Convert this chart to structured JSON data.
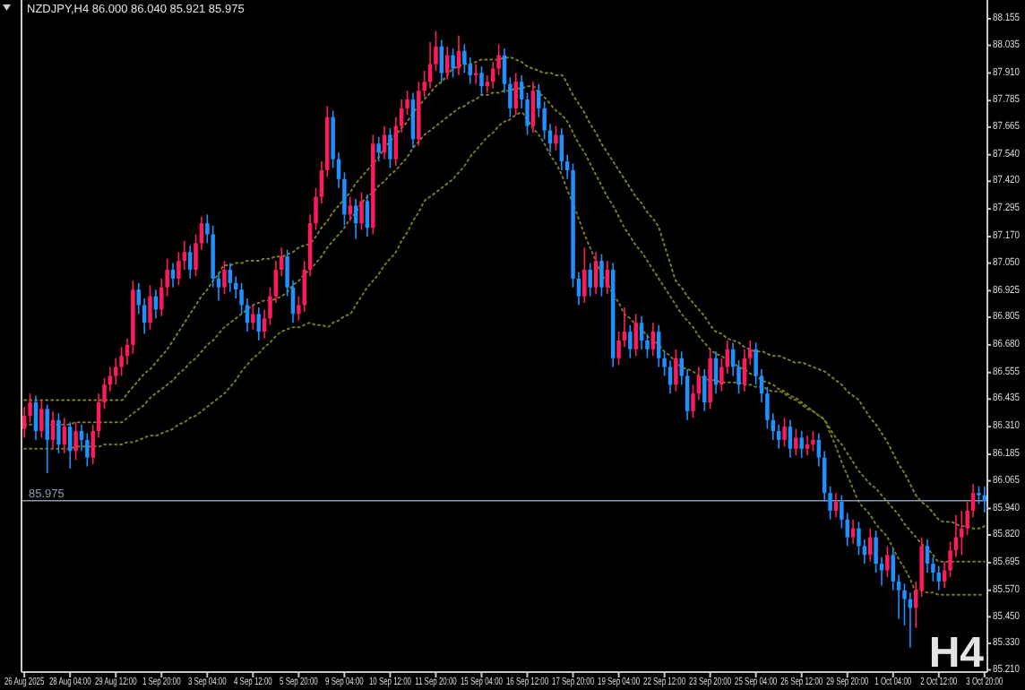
{
  "chart_data": {
    "type": "candlestick",
    "title": "NZDJPY,H4 86.000 86.040 85.921 85.975",
    "annotations": [
      "H4"
    ],
    "categories": [
      "26 Aug 2025",
      null,
      null,
      null,
      null,
      null,
      null,
      null,
      "28 Aug 04:00",
      null,
      null,
      null,
      null,
      null,
      null,
      null,
      "29 Aug 12:00",
      null,
      null,
      null,
      null,
      null,
      null,
      null,
      "1 Sep 20:00",
      null,
      null,
      null,
      null,
      null,
      null,
      null,
      "3 Sep 04:00",
      null,
      null,
      null,
      null,
      null,
      null,
      null,
      "4 Sep 12:00",
      null,
      null,
      null,
      null,
      null,
      null,
      null,
      "5 Sep 20:00",
      null,
      null,
      null,
      null,
      null,
      null,
      null,
      "9 Sep 04:00",
      null,
      null,
      null,
      null,
      null,
      null,
      null,
      "10 Sep 12:00",
      null,
      null,
      null,
      null,
      null,
      null,
      null,
      "11 Sep 20:00",
      null,
      null,
      null,
      null,
      null,
      null,
      null,
      "15 Sep 04:00",
      null,
      null,
      null,
      null,
      null,
      null,
      null,
      "16 Sep 12:00",
      null,
      null,
      null,
      null,
      null,
      null,
      null,
      "17 Sep 20:00",
      null,
      null,
      null,
      null,
      null,
      null,
      null,
      "19 Sep 04:00",
      null,
      null,
      null,
      null,
      null,
      null,
      null,
      "22 Sep 12:00",
      null,
      null,
      null,
      null,
      null,
      null,
      null,
      "23 Sep 20:00",
      null,
      null,
      null,
      null,
      null,
      null,
      null,
      "25 Sep 04:00",
      null,
      null,
      null,
      null,
      null,
      null,
      null,
      "26 Sep 12:00",
      null,
      null,
      null,
      null,
      null,
      null,
      null,
      "29 Sep 20:00",
      null,
      null,
      null,
      null,
      null,
      null,
      null,
      "1 Oct 04:00",
      null,
      null,
      null,
      null,
      null,
      null,
      null,
      "2 Oct 12:00",
      null,
      null,
      null,
      null,
      null,
      null,
      null,
      "3 Oct 20:00"
    ],
    "ylim": [
      85.2,
      88.24
    ],
    "yticks": [
      88.155,
      88.035,
      {
        "value": 87.91,
        "label": "87.910"
      },
      87.785,
      87.665,
      {
        "value": 87.54,
        "label": "87.540"
      },
      {
        "value": 87.42,
        "label": "87.420"
      },
      87.295,
      {
        "value": 87.17,
        "label": "87.170"
      },
      {
        "value": 87.05,
        "label": "87.050"
      },
      86.925,
      86.805,
      {
        "value": 86.68,
        "label": "86.680"
      },
      86.555,
      86.435,
      {
        "value": 86.31,
        "label": "86.310"
      },
      86.185,
      86.065,
      {
        "value": 85.94,
        "label": "85.940"
      },
      {
        "value": 85.82,
        "label": "85.820"
      },
      85.695,
      {
        "value": 85.57,
        "label": "85.570"
      },
      {
        "value": 85.45,
        "label": "85.450"
      },
      {
        "value": 85.33,
        "label": "85.330"
      },
      {
        "value": 85.21,
        "label": "85.210"
      }
    ],
    "ref_lines": [
      {
        "axis": "y",
        "value": 85.975,
        "label": "85.975",
        "color": "#8c98ad"
      }
    ],
    "ohlc": [
      [
        86.3,
        86.4,
        86.26,
        86.36
      ],
      [
        86.36,
        86.46,
        86.33,
        86.42
      ],
      [
        86.42,
        86.45,
        86.25,
        86.29
      ],
      [
        86.29,
        86.43,
        86.26,
        86.39
      ],
      [
        86.39,
        86.41,
        86.1,
        86.25
      ],
      [
        86.25,
        86.38,
        86.21,
        86.34
      ],
      [
        86.34,
        86.37,
        86.19,
        86.23
      ],
      [
        86.23,
        86.35,
        86.19,
        86.31
      ],
      [
        86.31,
        86.33,
        86.12,
        86.2
      ],
      [
        86.2,
        86.33,
        86.16,
        86.29
      ],
      [
        86.29,
        86.32,
        86.2,
        86.25
      ],
      [
        86.25,
        86.28,
        86.13,
        86.17
      ],
      [
        86.17,
        86.32,
        86.14,
        86.29
      ],
      [
        86.29,
        86.46,
        86.26,
        86.42
      ],
      [
        86.42,
        86.53,
        86.39,
        86.5
      ],
      [
        86.5,
        86.58,
        86.47,
        86.54
      ],
      [
        86.54,
        86.62,
        86.5,
        86.58
      ],
      [
        86.58,
        86.67,
        86.54,
        86.63
      ],
      [
        86.63,
        86.71,
        86.59,
        86.68
      ],
      [
        86.68,
        86.97,
        86.64,
        86.93
      ],
      [
        86.93,
        86.96,
        86.82,
        86.86
      ],
      [
        86.86,
        86.89,
        86.73,
        86.78
      ],
      [
        86.78,
        86.95,
        86.75,
        86.9
      ],
      [
        86.9,
        86.93,
        86.8,
        86.84
      ],
      [
        86.84,
        86.98,
        86.81,
        86.94
      ],
      [
        86.94,
        87.07,
        86.9,
        87.02
      ],
      [
        87.02,
        87.05,
        86.94,
        86.98
      ],
      [
        86.98,
        87.1,
        86.95,
        87.06
      ],
      [
        87.06,
        87.15,
        87.02,
        87.1
      ],
      [
        87.1,
        87.13,
        86.98,
        87.02
      ],
      [
        87.02,
        87.18,
        86.99,
        87.14
      ],
      [
        87.14,
        87.26,
        87.11,
        87.23
      ],
      [
        87.23,
        87.27,
        87.14,
        87.18
      ],
      [
        87.18,
        87.22,
        86.94,
        86.98
      ],
      [
        86.98,
        87.01,
        86.88,
        86.94
      ],
      [
        86.94,
        87.06,
        86.91,
        87.02
      ],
      [
        87.02,
        87.05,
        86.92,
        86.96
      ],
      [
        86.96,
        86.99,
        86.89,
        86.93
      ],
      [
        86.93,
        86.96,
        86.82,
        86.86
      ],
      [
        86.86,
        86.89,
        86.74,
        86.78
      ],
      [
        86.78,
        86.86,
        86.75,
        86.82
      ],
      [
        86.82,
        86.85,
        86.7,
        86.74
      ],
      [
        86.74,
        86.84,
        86.71,
        86.8
      ],
      [
        86.8,
        86.94,
        86.77,
        86.9
      ],
      [
        86.9,
        87.06,
        86.87,
        87.02
      ],
      [
        87.02,
        87.12,
        86.99,
        87.08
      ],
      [
        87.08,
        87.11,
        86.9,
        86.94
      ],
      [
        86.94,
        86.97,
        86.78,
        86.82
      ],
      [
        86.82,
        86.9,
        86.79,
        86.86
      ],
      [
        86.86,
        87.06,
        86.83,
        87.02
      ],
      [
        87.02,
        87.27,
        86.99,
        87.23
      ],
      [
        87.23,
        87.39,
        87.2,
        87.35
      ],
      [
        87.35,
        87.51,
        87.32,
        87.47
      ],
      [
        87.47,
        87.76,
        87.44,
        87.71
      ],
      [
        87.71,
        87.74,
        87.48,
        87.52
      ],
      [
        87.52,
        87.55,
        87.39,
        87.43
      ],
      [
        87.43,
        87.46,
        87.22,
        87.27
      ],
      [
        87.27,
        87.35,
        87.24,
        87.31
      ],
      [
        87.31,
        87.34,
        87.16,
        87.23
      ],
      [
        87.23,
        87.37,
        87.2,
        87.33
      ],
      [
        87.33,
        87.36,
        87.17,
        87.21
      ],
      [
        87.21,
        87.63,
        87.18,
        87.59
      ],
      [
        87.59,
        87.62,
        87.51,
        87.55
      ],
      [
        87.55,
        87.67,
        87.52,
        87.63
      ],
      [
        87.63,
        87.66,
        87.48,
        87.52
      ],
      [
        87.52,
        87.71,
        87.49,
        87.67
      ],
      [
        87.67,
        87.79,
        87.64,
        87.75
      ],
      [
        87.75,
        87.83,
        87.72,
        87.79
      ],
      [
        87.79,
        87.82,
        87.57,
        87.61
      ],
      [
        87.61,
        87.87,
        87.58,
        87.83
      ],
      [
        87.83,
        87.92,
        87.8,
        87.87
      ],
      [
        87.87,
        88.05,
        87.84,
        87.95
      ],
      [
        87.95,
        88.1,
        87.92,
        88.03
      ],
      [
        88.03,
        88.06,
        87.87,
        87.91
      ],
      [
        87.91,
        88.03,
        87.88,
        87.99
      ],
      [
        87.99,
        88.02,
        87.89,
        87.93
      ],
      [
        87.93,
        88.08,
        87.9,
        88.01
      ],
      [
        88.01,
        88.04,
        87.91,
        87.95
      ],
      [
        87.95,
        87.98,
        87.86,
        87.9
      ],
      [
        87.9,
        87.95,
        87.86,
        87.91
      ],
      [
        87.91,
        87.94,
        87.81,
        87.85
      ],
      [
        87.85,
        87.9,
        87.82,
        87.87
      ],
      [
        87.87,
        87.96,
        87.84,
        87.93
      ],
      [
        87.93,
        88.04,
        87.9,
        87.99
      ],
      [
        87.99,
        88.02,
        87.82,
        87.86
      ],
      [
        87.86,
        87.89,
        87.71,
        87.75
      ],
      [
        87.75,
        87.91,
        87.72,
        87.87
      ],
      [
        87.87,
        87.9,
        87.75,
        87.79
      ],
      [
        87.79,
        87.82,
        87.63,
        87.67
      ],
      [
        87.67,
        87.87,
        87.64,
        87.83
      ],
      [
        87.83,
        87.86,
        87.71,
        87.75
      ],
      [
        87.75,
        87.78,
        87.61,
        87.65
      ],
      [
        87.65,
        87.68,
        87.55,
        87.59
      ],
      [
        87.59,
        87.67,
        87.56,
        87.63
      ],
      [
        87.63,
        87.66,
        87.47,
        87.51
      ],
      [
        87.51,
        87.54,
        87.43,
        87.47
      ],
      [
        87.47,
        87.5,
        86.94,
        86.98
      ],
      [
        86.98,
        87.01,
        86.86,
        86.9
      ],
      [
        86.9,
        87.12,
        86.87,
        87.02
      ],
      [
        87.02,
        87.05,
        86.9,
        86.94
      ],
      [
        86.94,
        87.1,
        86.91,
        87.06
      ],
      [
        87.06,
        87.09,
        86.9,
        86.94
      ],
      [
        86.94,
        87.06,
        86.91,
        87.02
      ],
      [
        87.02,
        87.05,
        86.58,
        86.62
      ],
      [
        86.62,
        86.74,
        86.59,
        86.7
      ],
      [
        86.7,
        86.85,
        86.67,
        86.74
      ],
      [
        86.74,
        86.77,
        86.62,
        86.66
      ],
      [
        86.66,
        86.82,
        86.63,
        86.78
      ],
      [
        86.78,
        86.81,
        86.66,
        86.7
      ],
      [
        86.7,
        86.73,
        86.62,
        86.66
      ],
      [
        86.66,
        86.78,
        86.63,
        86.74
      ],
      [
        86.74,
        86.77,
        86.58,
        86.62
      ],
      [
        86.62,
        86.65,
        86.54,
        86.58
      ],
      [
        86.58,
        86.61,
        86.46,
        86.5
      ],
      [
        86.5,
        86.66,
        86.47,
        86.62
      ],
      [
        86.62,
        86.65,
        86.5,
        86.54
      ],
      [
        86.54,
        86.57,
        86.34,
        86.38
      ],
      [
        86.38,
        86.5,
        86.35,
        86.46
      ],
      [
        86.46,
        86.58,
        86.43,
        86.54
      ],
      [
        86.54,
        86.57,
        86.38,
        86.42
      ],
      [
        86.42,
        86.66,
        86.39,
        86.62
      ],
      [
        86.62,
        86.65,
        86.46,
        86.5
      ],
      [
        86.5,
        86.62,
        86.47,
        86.58
      ],
      [
        86.58,
        86.7,
        86.55,
        86.66
      ],
      [
        86.66,
        86.69,
        86.54,
        86.58
      ],
      [
        86.58,
        86.61,
        86.46,
        86.5
      ],
      [
        86.5,
        86.66,
        86.47,
        86.62
      ],
      [
        86.62,
        86.7,
        86.59,
        86.66
      ],
      [
        86.66,
        86.69,
        86.5,
        86.54
      ],
      [
        86.54,
        86.57,
        86.42,
        86.46
      ],
      [
        86.46,
        86.49,
        86.3,
        86.34
      ],
      [
        86.34,
        86.37,
        86.25,
        86.29
      ],
      [
        86.29,
        86.32,
        86.21,
        86.25
      ],
      [
        86.25,
        86.35,
        86.22,
        86.31
      ],
      [
        86.31,
        86.34,
        86.17,
        86.21
      ],
      [
        86.21,
        86.3,
        86.18,
        86.26
      ],
      [
        86.26,
        86.29,
        86.17,
        86.21
      ],
      [
        86.21,
        86.27,
        86.18,
        86.23
      ],
      [
        86.23,
        86.29,
        86.2,
        86.25
      ],
      [
        86.25,
        86.28,
        86.13,
        86.17
      ],
      [
        86.17,
        86.2,
        85.97,
        86.01
      ],
      [
        86.01,
        86.04,
        85.89,
        85.93
      ],
      [
        85.93,
        86.01,
        85.9,
        85.97
      ],
      [
        85.97,
        86.0,
        85.85,
        85.89
      ],
      [
        85.89,
        85.92,
        85.77,
        85.81
      ],
      [
        85.81,
        85.89,
        85.78,
        85.85
      ],
      [
        85.85,
        85.88,
        85.73,
        85.77
      ],
      [
        85.77,
        85.8,
        85.69,
        85.73
      ],
      [
        85.73,
        85.85,
        85.7,
        85.81
      ],
      [
        85.81,
        85.84,
        85.65,
        85.69
      ],
      [
        85.69,
        85.72,
        85.59,
        85.66
      ],
      [
        85.66,
        85.77,
        85.63,
        85.73
      ],
      [
        85.73,
        85.76,
        85.57,
        85.61
      ],
      [
        85.61,
        85.64,
        85.44,
        85.57
      ],
      [
        85.57,
        85.6,
        85.41,
        85.53
      ],
      [
        85.53,
        85.56,
        85.31,
        85.49
      ],
      [
        85.49,
        85.61,
        85.4,
        85.57
      ],
      [
        85.57,
        85.81,
        85.54,
        85.77
      ],
      [
        85.77,
        85.8,
        85.65,
        85.69
      ],
      [
        85.69,
        85.72,
        85.61,
        85.65
      ],
      [
        85.65,
        85.68,
        85.57,
        85.61
      ],
      [
        85.61,
        85.7,
        85.58,
        85.66
      ],
      [
        85.66,
        85.79,
        85.63,
        85.75
      ],
      [
        85.75,
        85.91,
        85.72,
        85.81
      ],
      [
        85.81,
        85.93,
        85.73,
        85.85
      ],
      [
        85.85,
        85.97,
        85.82,
        85.93
      ],
      [
        85.93,
        86.05,
        85.9,
        86.01
      ],
      [
        86.01,
        86.04,
        85.96,
        86.0
      ],
      [
        86.0,
        86.04,
        85.921,
        85.975
      ]
    ],
    "colors": [
      "#ff1a5e",
      "#ff1a5e",
      "#1e90ff",
      "#ff1a5e",
      "#1e90ff",
      "#ff1a5e",
      "#1e90ff",
      "#ff1a5e",
      "#1e90ff",
      "#ff1a5e",
      "#1e90ff",
      "#1e90ff",
      "#ff1a5e",
      "#ff1a5e",
      "#ff1a5e",
      "#ff1a5e",
      "#ff1a5e",
      "#ff1a5e",
      "#ff1a5e",
      "#ff1a5e",
      "#1e90ff",
      "#1e90ff",
      "#ff1a5e",
      "#1e90ff",
      "#ff1a5e",
      "#ff1a5e",
      "#1e90ff",
      "#ff1a5e",
      "#ff1a5e",
      "#1e90ff",
      "#ff1a5e",
      "#ff1a5e",
      "#1e90ff",
      "#1e90ff",
      "#1e90ff",
      "#ff1a5e",
      "#1e90ff",
      "#1e90ff",
      "#1e90ff",
      "#1e90ff",
      "#ff1a5e",
      "#1e90ff",
      "#ff1a5e",
      "#ff1a5e",
      "#ff1a5e",
      "#ff1a5e",
      "#1e90ff",
      "#1e90ff",
      "#ff1a5e",
      "#ff1a5e",
      "#ff1a5e",
      "#ff1a5e",
      "#ff1a5e",
      "#ff1a5e",
      "#1e90ff",
      "#1e90ff",
      "#1e90ff",
      "#ff1a5e",
      "#1e90ff",
      "#ff1a5e",
      "#1e90ff",
      "#ff1a5e",
      "#1e90ff",
      "#ff1a5e",
      "#1e90ff",
      "#ff1a5e",
      "#ff1a5e",
      "#ff1a5e",
      "#1e90ff",
      "#ff1a5e",
      "#ff1a5e",
      "#ff1a5e",
      "#ff1a5e",
      "#1e90ff",
      "#ff1a5e",
      "#1e90ff",
      "#ff1a5e",
      "#1e90ff",
      "#1e90ff",
      "#ff1a5e",
      "#1e90ff",
      "#ff1a5e",
      "#ff1a5e",
      "#ff1a5e",
      "#1e90ff",
      "#1e90ff",
      "#ff1a5e",
      "#1e90ff",
      "#1e90ff",
      "#ff1a5e",
      "#1e90ff",
      "#1e90ff",
      "#1e90ff",
      "#ff1a5e",
      "#1e90ff",
      "#1e90ff",
      "#1e90ff",
      "#1e90ff",
      "#ff1a5e",
      "#1e90ff",
      "#ff1a5e",
      "#1e90ff",
      "#ff1a5e",
      "#1e90ff",
      "#ff1a5e",
      "#ff1a5e",
      "#1e90ff",
      "#ff1a5e",
      "#1e90ff",
      "#1e90ff",
      "#ff1a5e",
      "#1e90ff",
      "#1e90ff",
      "#1e90ff",
      "#ff1a5e",
      "#1e90ff",
      "#1e90ff",
      "#ff1a5e",
      "#ff1a5e",
      "#1e90ff",
      "#ff1a5e",
      "#1e90ff",
      "#ff1a5e",
      "#ff1a5e",
      "#1e90ff",
      "#1e90ff",
      "#ff1a5e",
      "#ff1a5e",
      "#1e90ff",
      "#1e90ff",
      "#1e90ff",
      "#1e90ff",
      "#1e90ff",
      "#ff1a5e",
      "#1e90ff",
      "#ff1a5e",
      "#1e90ff",
      "#ff1a5e",
      "#ff1a5e",
      "#1e90ff",
      "#1e90ff",
      "#1e90ff",
      "#ff1a5e",
      "#1e90ff",
      "#1e90ff",
      "#ff1a5e",
      "#1e90ff",
      "#1e90ff",
      "#ff1a5e",
      "#1e90ff",
      "#1e90ff",
      "#ff1a5e",
      "#1e90ff",
      "#1e90ff",
      "#1e90ff",
      "#1e90ff",
      "#ff1a5e",
      "#ff1a5e",
      "#1e90ff",
      "#1e90ff",
      "#1e90ff",
      "#ff1a5e",
      "#ff1a5e",
      "#ff1a5e",
      "#ff1a5e",
      "#ff1a5e",
      "#ff1a5e",
      "#1e90ff",
      "#1e90ff"
    ],
    "series": [
      {
        "type": "line",
        "color": "#7d7d22",
        "line_style": "dotted",
        "values": [
          86.43,
          86.43,
          86.43,
          86.43,
          86.43,
          86.43,
          86.43,
          86.43,
          86.43,
          86.43,
          86.43,
          86.43,
          86.43,
          86.43,
          86.43,
          86.43,
          86.43,
          86.43,
          86.46,
          86.49,
          86.52,
          86.55,
          86.57,
          86.6,
          86.63,
          86.66,
          86.7,
          86.74,
          86.78,
          86.82,
          86.86,
          86.9,
          86.93,
          86.97,
          87.0,
          87.04,
          87.04,
          87.05,
          87.05,
          87.06,
          87.06,
          87.06,
          87.07,
          87.07,
          87.08,
          87.08,
          87.09,
          87.1,
          87.12,
          87.13,
          87.14,
          87.17,
          87.21,
          87.24,
          87.28,
          87.31,
          87.34,
          87.37,
          87.41,
          87.44,
          87.47,
          87.5,
          87.53,
          87.57,
          87.6,
          87.63,
          87.66,
          87.69,
          87.73,
          87.76,
          87.79,
          87.82,
          87.85,
          87.87,
          87.9,
          87.93,
          87.94,
          87.95,
          87.95,
          87.96,
          87.97,
          87.97,
          87.97,
          87.97,
          87.98,
          87.98,
          87.97,
          87.96,
          87.94,
          87.93,
          87.92,
          87.91,
          87.91,
          87.9,
          87.9,
          87.86,
          87.81,
          87.77,
          87.73,
          87.68,
          87.64,
          87.59,
          87.55,
          87.51,
          87.47,
          87.43,
          87.39,
          87.35,
          87.32,
          87.28,
          87.25,
          87.21,
          87.13,
          87.05,
          86.97,
          86.94,
          86.9,
          86.87,
          86.84,
          86.81,
          86.77,
          86.74,
          86.73,
          86.71,
          86.7,
          86.69,
          86.67,
          86.66,
          86.65,
          86.65,
          86.64,
          86.63,
          86.63,
          86.62,
          86.61,
          86.6,
          86.6,
          86.59,
          86.58,
          86.57,
          86.56,
          86.54,
          86.52,
          86.5,
          86.47,
          86.45,
          86.43,
          86.39,
          86.35,
          86.32,
          86.28,
          86.24,
          86.19,
          86.14,
          86.1,
          86.05,
          86.0,
          85.97,
          85.95,
          85.92,
          85.89,
          85.88,
          85.88,
          85.87,
          85.86,
          85.86,
          85.85,
          85.85,
          85.86
        ]
      },
      {
        "type": "line",
        "color": "#7a7a20",
        "line_style": "dotted",
        "values": [
          86.32,
          86.32,
          86.32,
          86.32,
          86.32,
          86.32,
          86.32,
          86.32,
          86.32,
          86.33,
          86.33,
          86.33,
          86.33,
          86.33,
          86.33,
          86.33,
          86.33,
          86.33,
          86.35,
          86.37,
          86.39,
          86.41,
          86.44,
          86.46,
          86.48,
          86.5,
          86.52,
          86.55,
          86.57,
          86.6,
          86.62,
          86.65,
          86.68,
          86.7,
          86.73,
          86.76,
          86.78,
          86.8,
          86.82,
          86.84,
          86.86,
          86.87,
          86.88,
          86.88,
          86.89,
          86.9,
          86.92,
          86.95,
          86.97,
          87.0,
          87.02,
          87.05,
          87.08,
          87.12,
          87.15,
          87.18,
          87.21,
          87.25,
          87.28,
          87.32,
          87.35,
          87.37,
          87.4,
          87.42,
          87.45,
          87.47,
          87.5,
          87.53,
          87.57,
          87.6,
          87.63,
          87.65,
          87.67,
          87.69,
          87.71,
          87.73,
          87.75,
          87.76,
          87.78,
          87.79,
          87.81,
          87.81,
          87.82,
          87.82,
          87.83,
          87.83,
          87.84,
          87.84,
          87.85,
          87.85,
          87.82,
          87.8,
          87.77,
          87.74,
          87.72,
          87.69,
          87.64,
          87.59,
          87.55,
          87.5,
          87.45,
          87.4,
          87.35,
          87.31,
          87.26,
          87.21,
          87.17,
          87.13,
          87.1,
          87.06,
          87.02,
          86.98,
          86.94,
          86.9,
          86.86,
          86.82,
          86.79,
          86.76,
          86.72,
          86.69,
          86.66,
          86.64,
          86.63,
          86.61,
          86.6,
          86.58,
          86.57,
          86.55,
          86.54,
          86.52,
          86.51,
          86.5,
          86.48,
          86.47,
          86.45,
          86.44,
          86.42,
          86.4,
          86.38,
          86.36,
          86.34,
          86.3,
          86.26,
          86.23,
          86.19,
          86.15,
          86.11,
          86.08,
          86.05,
          86.03,
          86.0,
          85.97,
          85.94,
          85.91,
          85.87,
          85.84,
          85.81,
          85.78,
          85.76,
          85.73,
          85.7,
          85.7,
          85.7,
          85.7,
          85.7,
          85.7,
          85.7,
          85.7,
          85.7
        ]
      },
      {
        "type": "line",
        "color": "#77771e",
        "line_style": "dotted",
        "values": [
          86.21,
          86.21,
          86.21,
          86.21,
          86.21,
          86.21,
          86.21,
          86.21,
          86.21,
          86.22,
          86.22,
          86.22,
          86.22,
          86.22,
          86.23,
          86.23,
          86.23,
          86.23,
          86.24,
          86.24,
          86.25,
          86.26,
          86.27,
          86.27,
          86.28,
          86.29,
          86.3,
          86.32,
          86.33,
          86.35,
          86.36,
          86.38,
          86.4,
          86.42,
          86.44,
          86.46,
          86.49,
          86.52,
          86.56,
          86.59,
          86.62,
          86.64,
          86.67,
          86.69,
          86.72,
          86.74,
          86.75,
          86.76,
          86.76,
          86.77,
          86.78,
          86.77,
          86.77,
          86.76,
          86.78,
          86.79,
          86.81,
          86.82,
          86.86,
          86.9,
          86.94,
          86.97,
          87.0,
          87.04,
          87.07,
          87.1,
          87.15,
          87.19,
          87.24,
          87.28,
          87.33,
          87.35,
          87.37,
          87.39,
          87.41,
          87.43,
          87.46,
          87.49,
          87.53,
          87.56,
          87.59,
          87.62,
          87.64,
          87.67,
          87.69,
          87.7,
          87.72,
          87.73,
          87.7,
          87.66,
          87.63,
          87.59,
          87.54,
          87.5,
          87.45,
          87.38,
          87.32,
          87.25,
          87.18,
          87.12,
          87.06,
          87.0,
          86.96,
          86.91,
          86.87,
          86.82,
          86.8,
          86.77,
          86.75,
          86.72,
          86.7,
          86.68,
          86.65,
          86.63,
          86.6,
          86.58,
          86.57,
          86.56,
          86.54,
          86.53,
          86.52,
          86.52,
          86.51,
          86.51,
          86.51,
          86.51,
          86.5,
          86.5,
          86.49,
          86.49,
          86.48,
          86.47,
          86.47,
          86.46,
          86.44,
          86.43,
          86.41,
          86.39,
          86.38,
          86.36,
          86.34,
          86.28,
          86.22,
          86.15,
          86.09,
          86.03,
          85.97,
          85.94,
          85.91,
          85.87,
          85.84,
          85.81,
          85.76,
          85.71,
          85.67,
          85.62,
          85.57,
          85.57,
          85.56,
          85.56,
          85.55,
          85.55,
          85.55,
          85.55,
          85.55,
          85.55,
          85.55,
          85.55,
          85.55
        ]
      }
    ]
  }
}
